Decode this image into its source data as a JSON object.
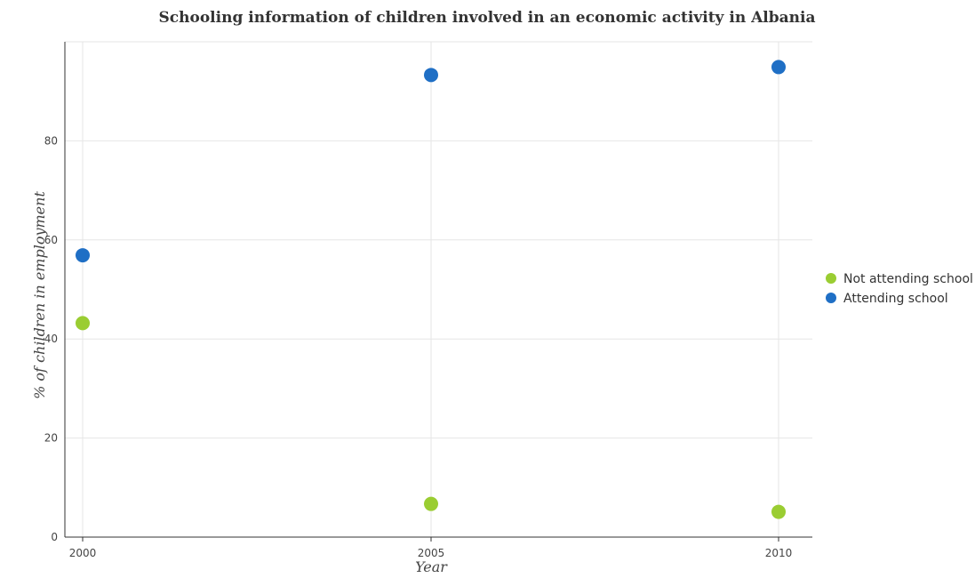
{
  "chart_data": {
    "type": "scatter",
    "title": "Schooling information of children involved in an economic activity in Albania",
    "xlabel": "Year",
    "ylabel": "% of children in employment",
    "categories": [
      "2000",
      "2005",
      "2010"
    ],
    "ylim": [
      0,
      100
    ],
    "yticks": [
      "0",
      "20",
      "40",
      "60",
      "80"
    ],
    "grid": true,
    "legend_position": "right",
    "series": [
      {
        "name": "Not attending school",
        "color": "#9acd32",
        "values": [
          43.2,
          6.7,
          5.1
        ]
      },
      {
        "name": "Attending school",
        "color": "#1f6fc5",
        "values": [
          56.9,
          93.3,
          94.9
        ]
      }
    ]
  }
}
